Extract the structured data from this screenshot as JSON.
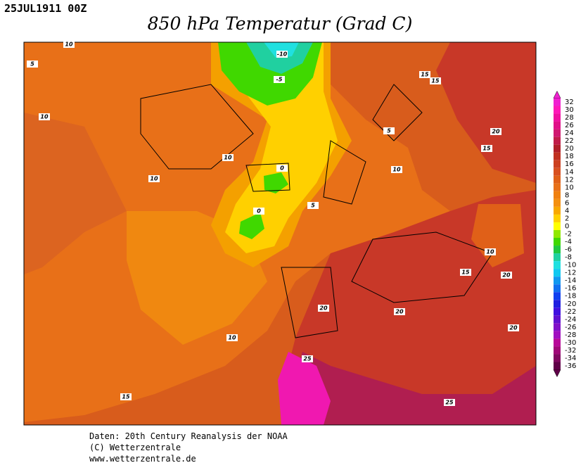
{
  "header": {
    "date": "25JUL1911 00Z",
    "title": "850 hPa Temperatur (Grad C)"
  },
  "legend": {
    "labels": [
      32,
      30,
      28,
      26,
      24,
      22,
      20,
      18,
      16,
      14,
      12,
      10,
      8,
      6,
      4,
      2,
      0,
      -2,
      -4,
      -6,
      -8,
      -10,
      -12,
      -14,
      -16,
      -18,
      -20,
      -22,
      -24,
      -26,
      -28,
      -30,
      -32,
      -34,
      -36
    ],
    "colors": [
      "#f020d0",
      "#ff18b8",
      "#f010a0",
      "#e01088",
      "#d01870",
      "#c01c48",
      "#b01e28",
      "#c03020",
      "#cc4020",
      "#d85020",
      "#e06018",
      "#e87018",
      "#f08010",
      "#f49010",
      "#f8a800",
      "#ffd000",
      "#ffff00",
      "#90e800",
      "#40d800",
      "#20c840",
      "#20d0a0",
      "#20e0e0",
      "#10c8f0",
      "#1098f0",
      "#1070f0",
      "#1040f0",
      "#2020e0",
      "#4010e0",
      "#6010d0",
      "#8010c8",
      "#a010c0",
      "#b80898",
      "#a00878",
      "#800860",
      "#600048"
    ]
  },
  "contour_labels": [
    10,
    5,
    -10,
    -5,
    15,
    15,
    10,
    20,
    5,
    15,
    10,
    0,
    10,
    10,
    5,
    0,
    10,
    15,
    20,
    20,
    20,
    20,
    10,
    25,
    15,
    25
  ],
  "footer": [
    "Daten: 20th Century Reanalysis der NOAA",
    "(C) Wetterzentrale",
    "www.wetterzentrale.de"
  ]
}
